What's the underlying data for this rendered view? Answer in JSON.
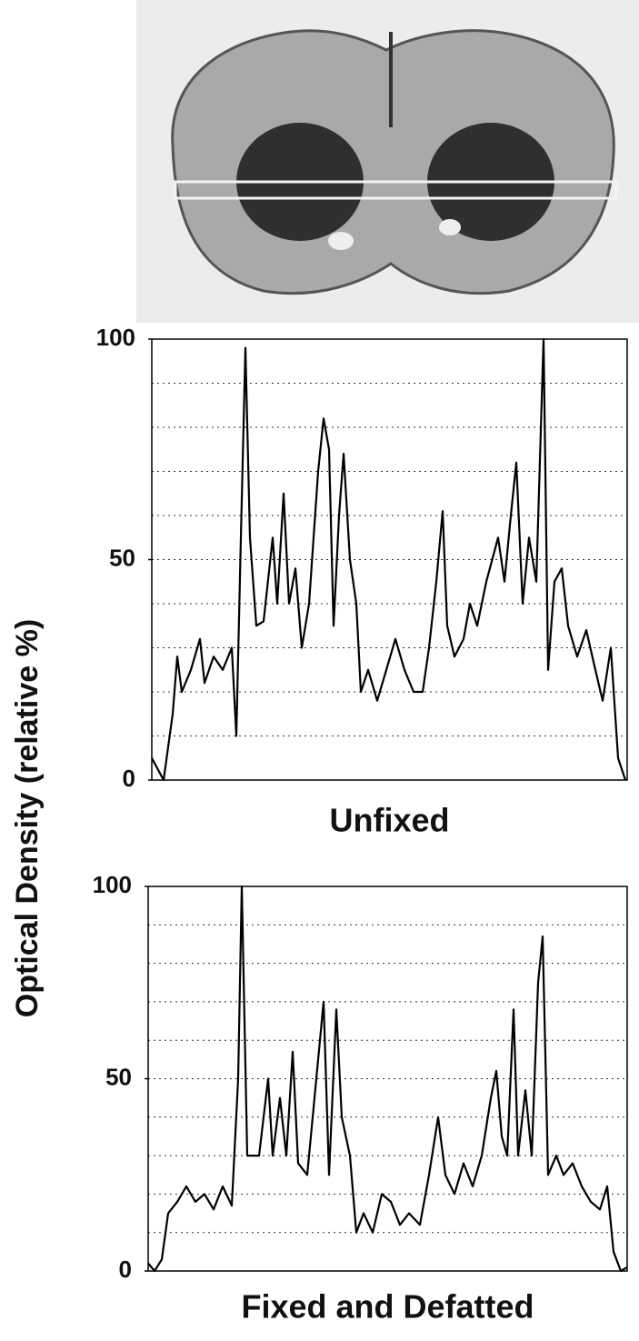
{
  "chart_data": [
    {
      "type": "line",
      "title": "Unfixed",
      "ylabel": "Optical Density (relative %)",
      "color": "#000000",
      "xlim": [
        0,
        523
      ],
      "ylim": [
        0,
        100
      ],
      "yticks": [
        0,
        50,
        100
      ],
      "ygrid": [
        10,
        20,
        30,
        40,
        50,
        60,
        70,
        80,
        90
      ],
      "x": [
        0,
        13,
        23,
        28,
        33,
        43,
        53,
        58,
        68,
        78,
        88,
        93,
        98,
        103,
        108,
        115,
        123,
        133,
        138,
        145,
        151,
        158,
        165,
        173,
        183,
        189,
        195,
        200,
        206,
        211,
        218,
        225,
        230,
        238,
        248,
        258,
        268,
        278,
        288,
        298,
        305,
        313,
        320,
        325,
        333,
        343,
        350,
        358,
        368,
        381,
        388,
        395,
        401,
        408,
        415,
        423,
        431,
        436,
        443,
        451,
        458,
        468,
        478,
        488,
        496,
        505,
        513,
        521
      ],
      "values": [
        5,
        0,
        15,
        28,
        20,
        25,
        32,
        22,
        28,
        25,
        30,
        10,
        55,
        98,
        55,
        35,
        36,
        55,
        40,
        65,
        40,
        48,
        30,
        40,
        70,
        82,
        75,
        35,
        60,
        74,
        50,
        40,
        20,
        25,
        18,
        25,
        32,
        25,
        20,
        20,
        30,
        45,
        61,
        35,
        28,
        32,
        40,
        35,
        45,
        55,
        45,
        60,
        72,
        40,
        55,
        45,
        100,
        25,
        45,
        48,
        35,
        28,
        34,
        25,
        18,
        30,
        5,
        0
      ]
    },
    {
      "type": "line",
      "title": "Fixed and Defatted",
      "color": "#000000",
      "xlim": [
        0,
        527
      ],
      "ylim": [
        0,
        100
      ],
      "yticks": [
        0,
        50,
        100
      ],
      "ygrid": [
        10,
        20,
        30,
        40,
        50,
        60,
        70,
        80,
        90
      ],
      "x": [
        0,
        7,
        15,
        22,
        32,
        42,
        52,
        62,
        72,
        82,
        92,
        99,
        103,
        109,
        122,
        132,
        137,
        145,
        152,
        159,
        165,
        175,
        185,
        193,
        199,
        207,
        213,
        222,
        229,
        237,
        247,
        257,
        267,
        277,
        287,
        299,
        309,
        319,
        327,
        337,
        347,
        357,
        367,
        377,
        383,
        389,
        395,
        402,
        407,
        415,
        422,
        429,
        434,
        440,
        449,
        457,
        467,
        477,
        487,
        497,
        505,
        512,
        520,
        527
      ],
      "values": [
        2,
        0,
        3,
        15,
        18,
        22,
        18,
        20,
        16,
        22,
        17,
        50,
        100,
        30,
        30,
        50,
        30,
        45,
        30,
        57,
        28,
        25,
        50,
        70,
        25,
        68,
        40,
        30,
        10,
        15,
        10,
        20,
        18,
        12,
        15,
        12,
        25,
        40,
        25,
        20,
        28,
        22,
        30,
        45,
        52,
        35,
        30,
        68,
        30,
        47,
        30,
        75,
        87,
        25,
        30,
        25,
        28,
        22,
        18,
        16,
        22,
        5,
        0,
        1
      ]
    }
  ]
}
